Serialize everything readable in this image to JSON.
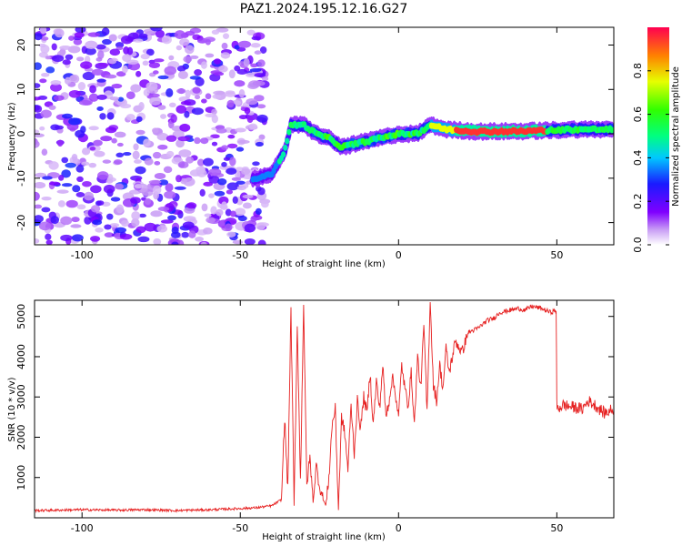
{
  "title": "PAZ1.2024.195.12.16.G27",
  "colors": {
    "snr_line": "#e62020",
    "axis": "#000000"
  },
  "chart_data": [
    {
      "type": "heatmap",
      "xlabel": "Height of straight line (km)",
      "ylabel": "Frequency (Hz)",
      "xlim": [
        -115,
        68
      ],
      "ylim": [
        -25,
        24
      ],
      "x_ticks": [
        -100,
        -50,
        0,
        50
      ],
      "x_tick_labels": [
        "-100",
        "-50",
        "0",
        "50"
      ],
      "y_ticks": [
        -20,
        -10,
        0,
        10,
        20
      ],
      "y_tick_labels": [
        "-20",
        "-10",
        "0",
        "10",
        "20"
      ],
      "colorscale": "rainbow (violet → blue → cyan → green → yellow → red)",
      "colorbar": {
        "label": "Normalized spectral amplitude",
        "range": [
          0,
          1
        ],
        "ticks": [
          0,
          0.2,
          0.4,
          0.6,
          0.8
        ],
        "tick_labels": [
          "0.0",
          "0.2",
          "0.4",
          "0.6",
          "0.8"
        ]
      },
      "noise_region": {
        "x_range": [
          -115,
          -42
        ],
        "freq_range": [
          -25,
          24
        ],
        "amplitude_range": [
          0.05,
          0.3
        ]
      },
      "ridge": [
        {
          "x": -45,
          "freq": -10
        },
        {
          "x": -40,
          "freq": -9
        },
        {
          "x": -36,
          "freq": -4
        },
        {
          "x": -34,
          "freq": 2
        },
        {
          "x": -30,
          "freq": 2
        },
        {
          "x": -26,
          "freq": 0
        },
        {
          "x": -22,
          "freq": -1
        },
        {
          "x": -18,
          "freq": -3
        },
        {
          "x": -12,
          "freq": -2
        },
        {
          "x": -6,
          "freq": -1
        },
        {
          "x": 0,
          "freq": 0
        },
        {
          "x": 6,
          "freq": 0
        },
        {
          "x": 10,
          "freq": 2
        },
        {
          "x": 15,
          "freq": 1
        },
        {
          "x": 25,
          "freq": 0.5
        },
        {
          "x": 40,
          "freq": 0.6
        },
        {
          "x": 55,
          "freq": 1
        },
        {
          "x": 68,
          "freq": 1
        }
      ]
    },
    {
      "type": "line",
      "xlabel": "Height of straight line (km)",
      "ylabel": "SNR (10 * v/v)",
      "xlim": [
        -115,
        68
      ],
      "ylim": [
        0,
        5400
      ],
      "x_ticks": [
        -100,
        -50,
        0,
        50
      ],
      "x_tick_labels": [
        "-100",
        "-50",
        "0",
        "50"
      ],
      "y_ticks": [
        1000,
        2000,
        3000,
        4000,
        5000
      ],
      "y_tick_labels": [
        "1000",
        "2000",
        "3000",
        "4000",
        "5000"
      ],
      "series": [
        {
          "x": [
            -115,
            -100,
            -90,
            -80,
            -70,
            -60,
            -50,
            -45,
            -40,
            -37,
            -36,
            -35,
            -34,
            -33,
            -32,
            -31,
            -30,
            -29,
            -28,
            -27,
            -26,
            -25,
            -24,
            -23,
            -22,
            -21,
            -20,
            -19,
            -18,
            -17,
            -16,
            -15,
            -14,
            -13,
            -12,
            -11,
            -10,
            -9,
            -8,
            -7,
            -6,
            -5,
            -4,
            -3,
            -2,
            -1,
            0,
            1,
            2,
            3,
            4,
            5,
            6,
            7,
            8,
            9,
            10,
            11,
            12,
            13,
            14,
            15,
            16,
            18,
            20,
            22,
            25,
            28,
            30,
            32,
            35,
            38,
            40,
            42,
            45,
            48,
            49.8,
            50,
            50.2,
            52,
            55,
            58,
            60,
            62,
            65,
            68
          ],
          "y": [
            180,
            200,
            190,
            200,
            180,
            200,
            230,
            250,
            300,
            450,
            2500,
            700,
            5200,
            300,
            4800,
            900,
            5300,
            800,
            1500,
            400,
            1300,
            800,
            500,
            300,
            1000,
            2300,
            2700,
            200,
            2500,
            2100,
            1200,
            2800,
            1600,
            2900,
            2200,
            3000,
            2600,
            3600,
            2300,
            3400,
            2700,
            3800,
            2500,
            2900,
            3500,
            3100,
            2500,
            3800,
            3200,
            2800,
            3600,
            2300,
            4000,
            3200,
            4800,
            2600,
            5400,
            3300,
            2900,
            3800,
            3200,
            4200,
            3600,
            4400,
            4100,
            4600,
            4700,
            4900,
            4950,
            5100,
            5150,
            5200,
            5150,
            5250,
            5200,
            5100,
            5150,
            2800,
            2700,
            2800,
            2750,
            2700,
            2900,
            2800,
            2600,
            2700
          ]
        }
      ]
    }
  ]
}
